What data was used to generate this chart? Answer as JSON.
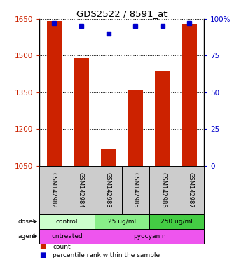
{
  "title": "GDS2522 / 8591_at",
  "samples": [
    "GSM142982",
    "GSM142984",
    "GSM142983",
    "GSM142985",
    "GSM142986",
    "GSM142987"
  ],
  "bar_values": [
    1640,
    1490,
    1120,
    1360,
    1435,
    1630
  ],
  "percentile_values": [
    97,
    95,
    90,
    95,
    95,
    97
  ],
  "y_min": 1050,
  "y_max": 1650,
  "y_ticks": [
    1050,
    1200,
    1350,
    1500,
    1650
  ],
  "y2_tick_labels": [
    "0",
    "25",
    "50",
    "75",
    "100%"
  ],
  "y2_ticks": [
    0,
    25,
    50,
    75,
    100
  ],
  "bar_color": "#cc2200",
  "percentile_color": "#0000cc",
  "dose_labels": [
    "control",
    "25 ug/ml",
    "250 ug/ml"
  ],
  "dose_colors": [
    "#ccffcc",
    "#88ee88",
    "#44cc44"
  ],
  "agent_labels": [
    "untreated",
    "pyocyanin"
  ],
  "agent_colors": [
    "#ee55ee",
    "#ee55ee"
  ],
  "sample_bg_color": "#cccccc",
  "legend_bar_color": "#cc2200",
  "legend_pct_color": "#0000cc"
}
